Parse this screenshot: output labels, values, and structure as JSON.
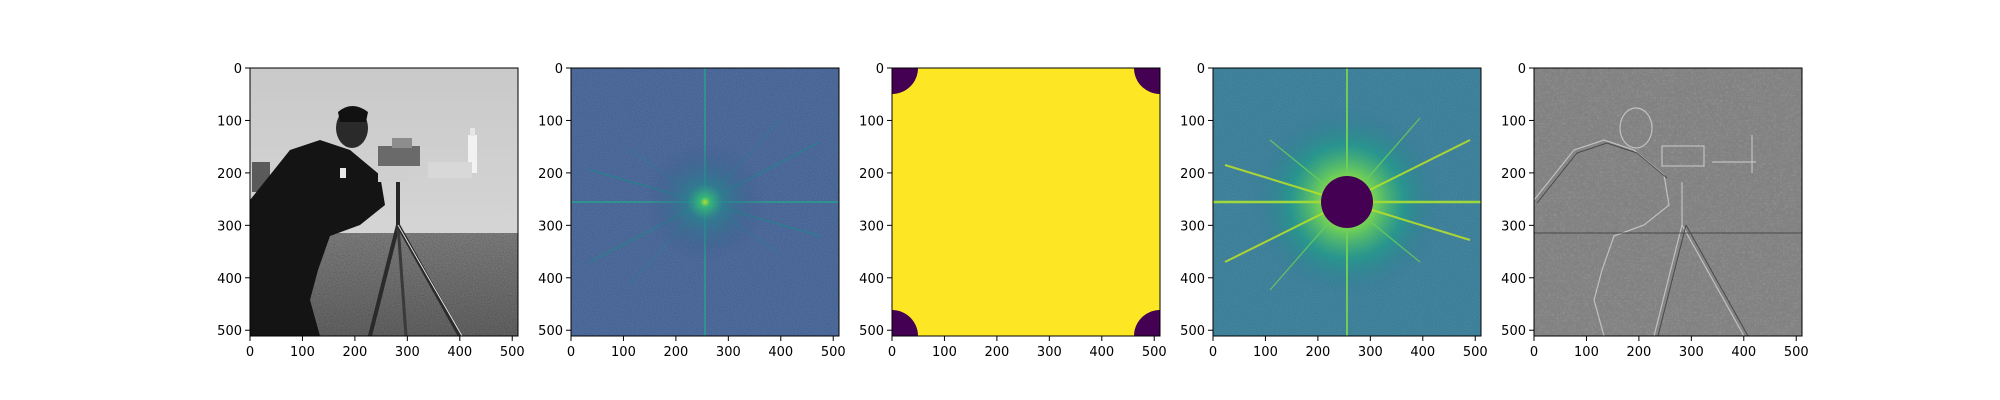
{
  "chart_data": [
    {
      "type": "heatmap",
      "image": "cameraman-grayscale-photo",
      "colormap": "gray",
      "xlim": [
        0,
        511
      ],
      "ylim": [
        511,
        0
      ],
      "xticks": [
        0,
        100,
        200,
        300,
        400,
        500
      ],
      "yticks": [
        0,
        100,
        200,
        300,
        400,
        500
      ],
      "title": "",
      "xlabel": "",
      "ylabel": ""
    },
    {
      "type": "heatmap",
      "image": "fft-log-magnitude-spectrum-centered",
      "colormap": "viridis",
      "center": [
        256,
        256
      ],
      "xlim": [
        0,
        511
      ],
      "ylim": [
        511,
        0
      ],
      "xticks": [
        0,
        100,
        200,
        300,
        400,
        500
      ],
      "yticks": [
        0,
        100,
        200,
        300,
        400,
        500
      ],
      "title": "",
      "xlabel": "",
      "ylabel": ""
    },
    {
      "type": "heatmap",
      "image": "high-pass-mask-unshifted",
      "colormap": "viridis",
      "mask_radius": 50,
      "mask_centers": [
        [
          0,
          0
        ],
        [
          511,
          0
        ],
        [
          0,
          511
        ],
        [
          511,
          511
        ]
      ],
      "inside_value": 0,
      "outside_value": 1,
      "xlim": [
        0,
        511
      ],
      "ylim": [
        511,
        0
      ],
      "xticks": [
        0,
        100,
        200,
        300,
        400,
        500
      ],
      "yticks": [
        0,
        100,
        200,
        300,
        400,
        500
      ],
      "title": "",
      "xlabel": "",
      "ylabel": ""
    },
    {
      "type": "heatmap",
      "image": "masked-fft-spectrum",
      "colormap": "viridis",
      "center": [
        256,
        256
      ],
      "mask_radius": 50,
      "xlim": [
        0,
        511
      ],
      "ylim": [
        511,
        0
      ],
      "xticks": [
        0,
        100,
        200,
        300,
        400,
        500
      ],
      "yticks": [
        0,
        100,
        200,
        300,
        400,
        500
      ],
      "title": "",
      "xlabel": "",
      "ylabel": ""
    },
    {
      "type": "heatmap",
      "image": "high-pass-filtered-edges",
      "colormap": "gray",
      "xlim": [
        0,
        511
      ],
      "ylim": [
        511,
        0
      ],
      "xticks": [
        0,
        100,
        200,
        300,
        400,
        500
      ],
      "yticks": [
        0,
        100,
        200,
        300,
        400,
        500
      ],
      "title": "",
      "xlabel": "",
      "ylabel": ""
    }
  ],
  "colors": {
    "viridis_dark": "#440154",
    "viridis_bg": "#3b528b",
    "viridis_teal": "#26828e",
    "viridis_green": "#35b779",
    "viridis_yellow": "#fde725",
    "filtered_gray": "#7f7f7f"
  }
}
